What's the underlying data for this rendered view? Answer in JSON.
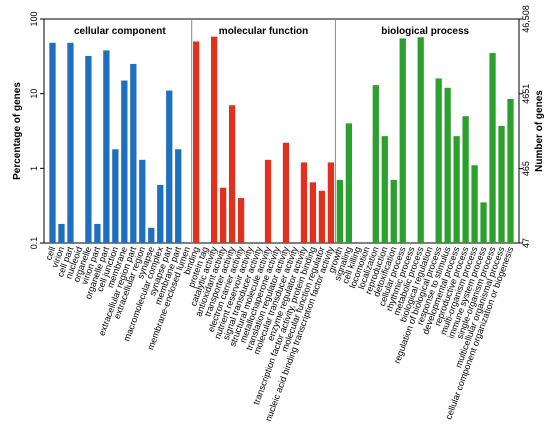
{
  "chart_data": {
    "type": "bar",
    "log_scale": true,
    "ylabel": "Percentage of genes",
    "y2label": "Number of genes",
    "ylim": [
      0.1,
      100
    ],
    "yticks": [
      0.1,
      1,
      10,
      100
    ],
    "y2lim": [
      47,
      46508
    ],
    "y2ticks": [
      47,
      465,
      4651,
      {
        "value": 46508,
        "label": "46,508"
      }
    ],
    "groups": [
      {
        "name": "cellular component",
        "color": "#1f6fbf",
        "categories": [
          "cell",
          "virion",
          "cell part",
          "nucleoid",
          "organelle",
          "virion part",
          "organelle part",
          "cell junction",
          "membrane",
          "extracellular region part",
          "extracellular region",
          "synapse",
          "macromolecular complex",
          "synapse part",
          "membrane part",
          "membrane-enclosed lumen"
        ],
        "values": [
          48,
          0.18,
          48,
          null,
          32,
          0.18,
          38,
          1.8,
          15,
          25,
          1.3,
          0.16,
          0.6,
          11,
          1.8,
          null
        ]
      },
      {
        "name": "molecular function",
        "color": "#e0301e",
        "categories": [
          "binding",
          "protein tag",
          "catalytic activity",
          "antioxidant activity",
          "transporter activity",
          "electron carrier activity",
          "nutrient reservoir activity",
          "signal transducer activity",
          "structural molecule activity",
          "metallochaperone activity",
          "translation regulator activity",
          "molecular transducer activity",
          "enzyme regulator activity",
          "transcription factor activity, protein binding",
          "molecular function regulator",
          "nucleic acid binding transcription factor activity"
        ],
        "values": [
          50,
          null,
          58,
          0.55,
          7,
          0.4,
          null,
          null,
          1.3,
          null,
          2.2,
          null,
          1.2,
          0.65,
          0.5,
          1.2
        ]
      },
      {
        "name": "biological process",
        "color": "#2ca02c",
        "categories": [
          "growth",
          "signaling",
          "cell killing",
          "locomotion",
          "localization",
          "reproduction",
          "detoxification",
          "cellular process",
          "rhythmic process",
          "metabolic process",
          "biological regulation",
          "regulation of biological process",
          "response to stimulus",
          "developmental process",
          "reproductive process",
          "multi-organism process",
          "immune system process",
          "single-organism process",
          "multicellular organismal process",
          "cellular component organization or biogenesis"
        ],
        "values": [
          0.7,
          4,
          null,
          null,
          13,
          2.7,
          0.7,
          55,
          null,
          57,
          null,
          16,
          12,
          2.7,
          5,
          1.1,
          0.35,
          35,
          3.7,
          8.5
        ]
      }
    ]
  }
}
